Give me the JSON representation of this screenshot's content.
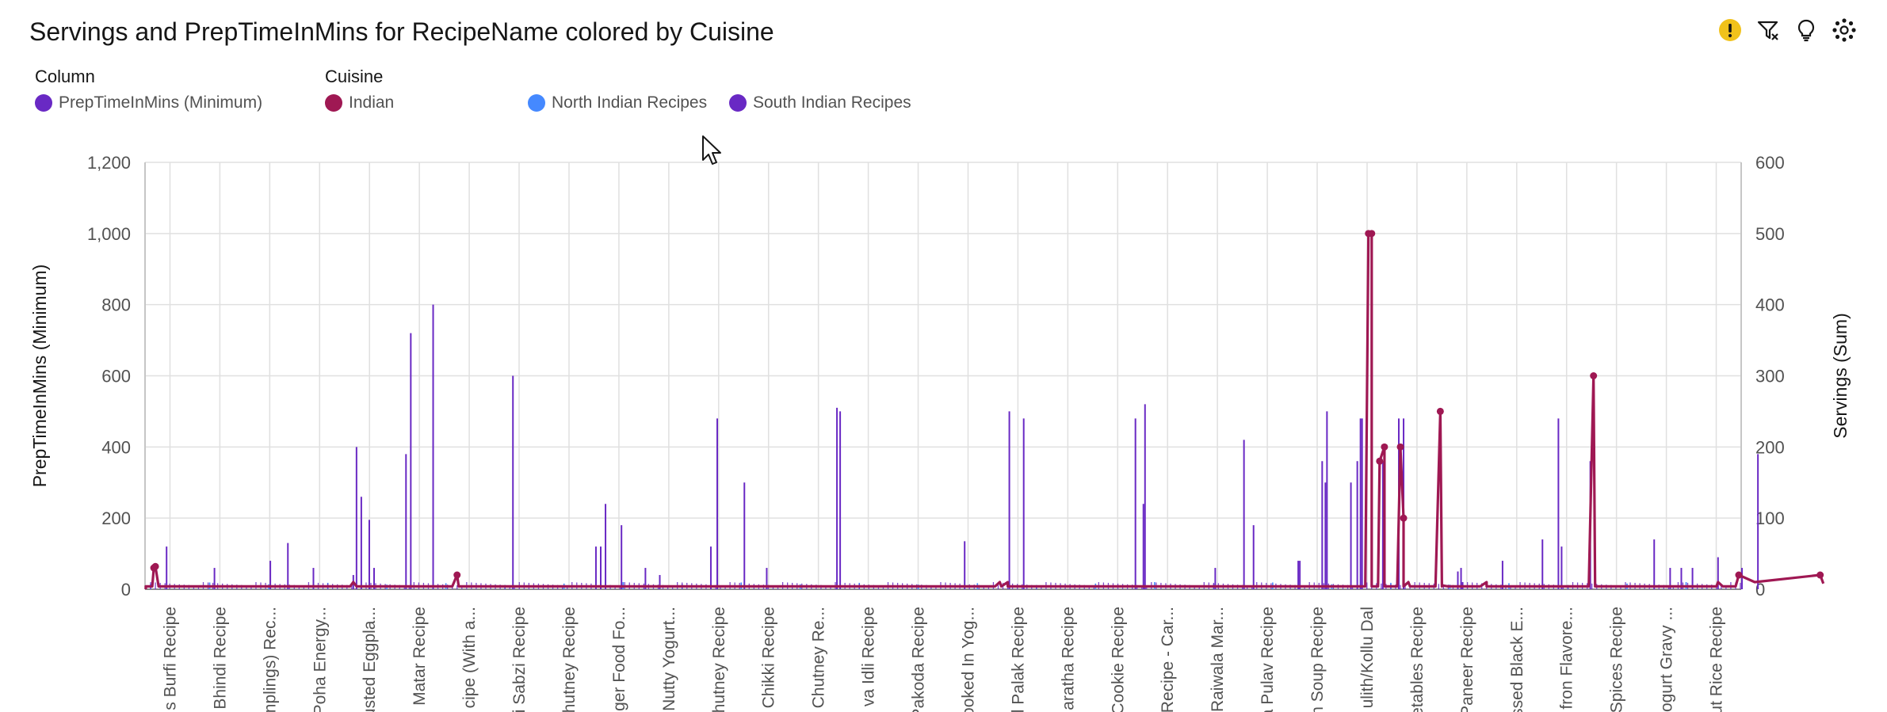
{
  "header": {
    "title": "Servings and PrepTimeInMins for RecipeName colored by Cuisine",
    "tools": [
      {
        "name": "warning-icon",
        "color": "#f1c21b"
      },
      {
        "name": "filter-icon"
      },
      {
        "name": "lightbulb-icon"
      },
      {
        "name": "settings-icon"
      }
    ]
  },
  "legend": {
    "column_title": "Column",
    "column_items": [
      {
        "label": "PrepTimeInMins (Minimum)",
        "color": "#6929c4"
      }
    ],
    "cuisine_title": "Cuisine",
    "cuisine_items": [
      {
        "label": "Indian",
        "color": "#9f1853"
      },
      {
        "label": "North Indian Recipes",
        "color": "#4589ff"
      },
      {
        "label": "South Indian Recipes",
        "color": "#6929c4"
      }
    ]
  },
  "chart_data": {
    "type": "bar",
    "title": "Servings and PrepTimeInMins for RecipeName colored by Cuisine",
    "xlabel": "",
    "ylabel": "PrepTimeInMins (Minimum)",
    "y2label": "Servings (Sum)",
    "ylim": [
      0,
      1200
    ],
    "y2lim": [
      0,
      600
    ],
    "yticks": [
      "0",
      "200",
      "400",
      "600",
      "800",
      "1,000",
      "1,200"
    ],
    "y2ticks": [
      "0",
      "100",
      "200",
      "300",
      "400",
      "500",
      "600"
    ],
    "grid": true,
    "legend_position": "top-left",
    "category_count": 1000,
    "categories": [
      "s Burfi Recipe",
      "Bhindi Recipe",
      "nplings) Rec...",
      "Poha Energy...",
      "usted Eggpla...",
      "Matar Recipe",
      "cipe (With a...",
      "i Sabzi Recipe",
      "hutney Recipe",
      "ger Food Fo...",
      "Nutty Yogurt...",
      "hutney Recipe",
      "Chikki Recipe",
      "Chutney Re...",
      "va Idli Recipe",
      "Pakoda Recipe",
      "ooked In Yog...",
      "l Palak Recipe",
      "aratha Recipe",
      "Cookie Recipe",
      "Recipe - Car...",
      "Raiwala Mar...",
      "a Pulav Recipe",
      "n Soup Recipe",
      "ulith/Kollu Dal",
      "etables Recipe",
      "Paneer Recipe",
      "ssed Black E...",
      "fron Flavore...",
      "Spices Recipe",
      "ogurt Gravy ...",
      "ut Rice Recipe"
    ],
    "series": [
      {
        "name": "PrepTimeInMins (Minimum)",
        "type": "bar",
        "axis": "left",
        "color": "#6929c4",
        "baseline": 10,
        "spikes": [
          [
            13,
            120
          ],
          [
            43,
            60
          ],
          [
            78,
            80
          ],
          [
            89,
            130
          ],
          [
            105,
            60
          ],
          [
            130,
            40
          ],
          [
            132,
            400
          ],
          [
            135,
            260
          ],
          [
            140,
            195
          ],
          [
            143,
            60
          ],
          [
            163,
            380
          ],
          [
            166,
            720
          ],
          [
            180,
            800
          ],
          [
            230,
            600
          ],
          [
            282,
            120
          ],
          [
            285,
            120
          ],
          [
            288,
            240
          ],
          [
            298,
            180
          ],
          [
            313,
            60
          ],
          [
            322,
            40
          ],
          [
            354,
            120
          ],
          [
            358,
            480
          ],
          [
            375,
            300
          ],
          [
            389,
            60
          ],
          [
            433,
            510
          ],
          [
            435,
            500
          ],
          [
            513,
            135
          ],
          [
            541,
            500
          ],
          [
            550,
            480
          ],
          [
            620,
            480
          ],
          [
            625,
            240
          ],
          [
            626,
            520
          ],
          [
            670,
            60
          ],
          [
            688,
            420
          ],
          [
            694,
            180
          ],
          [
            722,
            80
          ],
          [
            723,
            80
          ],
          [
            737,
            360
          ],
          [
            739,
            300
          ],
          [
            740,
            500
          ],
          [
            755,
            300
          ],
          [
            759,
            360
          ],
          [
            761,
            480
          ],
          [
            762,
            480
          ],
          [
            775,
            360
          ],
          [
            785,
            480
          ],
          [
            788,
            480
          ],
          [
            825,
            20
          ],
          [
            822,
            50
          ],
          [
            824,
            60
          ],
          [
            850,
            80
          ],
          [
            875,
            140
          ],
          [
            885,
            480
          ],
          [
            887,
            120
          ],
          [
            905,
            360
          ],
          [
            945,
            140
          ],
          [
            955,
            60
          ],
          [
            962,
            60
          ],
          [
            969,
            60
          ],
          [
            985,
            90
          ],
          [
            1000,
            60
          ],
          [
            1010,
            380
          ]
        ]
      },
      {
        "name": "Indian",
        "type": "line",
        "axis": "right",
        "color": "#9f1853",
        "baseline": 4,
        "peaks": [
          [
            0,
            0
          ],
          [
            5,
            30
          ],
          [
            6,
            32
          ],
          [
            130,
            10
          ],
          [
            195,
            20
          ],
          [
            535,
            10
          ],
          [
            540,
            10
          ],
          [
            766,
            500
          ],
          [
            768,
            500
          ],
          [
            773,
            180
          ],
          [
            776,
            200
          ],
          [
            786,
            200
          ],
          [
            788,
            100
          ],
          [
            791,
            10
          ],
          [
            811,
            250
          ],
          [
            813,
            5
          ],
          [
            840,
            10
          ],
          [
            907,
            300
          ],
          [
            985,
            10
          ],
          [
            998,
            20
          ],
          [
            1008,
            10
          ],
          [
            1049,
            20
          ],
          [
            1051,
            8
          ]
        ]
      },
      {
        "name": "North Indian Recipes",
        "type": "bar",
        "axis": "left",
        "color": "#4589ff",
        "baseline": 12
      }
    ]
  }
}
